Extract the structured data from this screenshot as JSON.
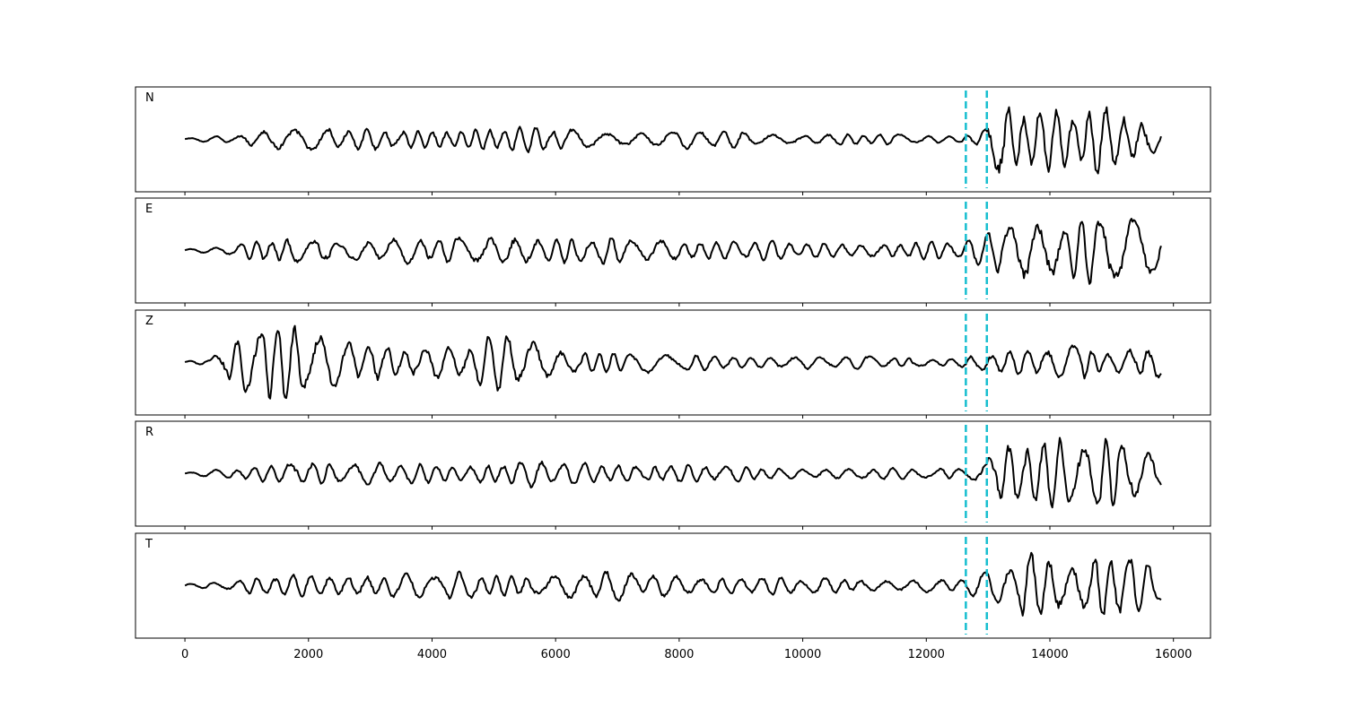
{
  "chart_data": {
    "type": "line",
    "xlim": [
      -800,
      16600
    ],
    "x_ticks": [
      0,
      2000,
      4000,
      6000,
      8000,
      10000,
      12000,
      14000,
      16000
    ],
    "x_tick_labels": [
      "0",
      "2000",
      "4000",
      "6000",
      "8000",
      "10000",
      "12000",
      "14000",
      "16000"
    ],
    "sample_range": [
      0,
      15800
    ],
    "trace_color": "#000000",
    "marker_color": "#17becf",
    "markers": [
      12640,
      12980
    ],
    "ylim": [
      -1.2,
      1.2
    ],
    "grid": false,
    "series": [
      {
        "name": "N",
        "envelope": [
          [
            0,
            0.03
          ],
          [
            800,
            0.1
          ],
          [
            1500,
            0.35
          ],
          [
            2500,
            0.25
          ],
          [
            3500,
            0.22
          ],
          [
            4500,
            0.28
          ],
          [
            5500,
            0.3
          ],
          [
            6500,
            0.22
          ],
          [
            7500,
            0.2
          ],
          [
            8500,
            0.22
          ],
          [
            9500,
            0.14
          ],
          [
            10500,
            0.14
          ],
          [
            11500,
            0.12
          ],
          [
            12500,
            0.08
          ],
          [
            12900,
            0.25
          ],
          [
            13150,
            1.0
          ],
          [
            13600,
            0.8
          ],
          [
            14200,
            0.65
          ],
          [
            14800,
            0.8
          ],
          [
            15200,
            0.7
          ],
          [
            15800,
            0.45
          ]
        ]
      },
      {
        "name": "E",
        "envelope": [
          [
            0,
            0.03
          ],
          [
            800,
            0.12
          ],
          [
            1500,
            0.3
          ],
          [
            2500,
            0.3
          ],
          [
            3500,
            0.3
          ],
          [
            4500,
            0.3
          ],
          [
            5200,
            0.45
          ],
          [
            6000,
            0.3
          ],
          [
            7000,
            0.3
          ],
          [
            8000,
            0.28
          ],
          [
            9000,
            0.25
          ],
          [
            10000,
            0.18
          ],
          [
            11000,
            0.2
          ],
          [
            12000,
            0.2
          ],
          [
            12500,
            0.2
          ],
          [
            12900,
            0.35
          ],
          [
            13300,
            0.8
          ],
          [
            13800,
            0.85
          ],
          [
            14300,
            0.8
          ],
          [
            14700,
            0.8
          ],
          [
            15100,
            0.9
          ],
          [
            15500,
            0.7
          ],
          [
            15800,
            0.5
          ]
        ]
      },
      {
        "name": "Z",
        "envelope": [
          [
            0,
            0.03
          ],
          [
            400,
            0.1
          ],
          [
            700,
            0.6
          ],
          [
            1000,
            1.0
          ],
          [
            1700,
            0.9
          ],
          [
            2500,
            0.55
          ],
          [
            3500,
            0.45
          ],
          [
            4500,
            0.4
          ],
          [
            5200,
            0.75
          ],
          [
            6000,
            0.35
          ],
          [
            7000,
            0.28
          ],
          [
            8000,
            0.18
          ],
          [
            9000,
            0.18
          ],
          [
            10000,
            0.15
          ],
          [
            11000,
            0.15
          ],
          [
            12000,
            0.12
          ],
          [
            12600,
            0.12
          ],
          [
            13000,
            0.25
          ],
          [
            13800,
            0.3
          ],
          [
            14500,
            0.55
          ],
          [
            15000,
            0.3
          ],
          [
            15800,
            0.5
          ]
        ]
      },
      {
        "name": "R",
        "envelope": [
          [
            0,
            0.03
          ],
          [
            800,
            0.12
          ],
          [
            1700,
            0.35
          ],
          [
            2500,
            0.25
          ],
          [
            3500,
            0.25
          ],
          [
            4500,
            0.25
          ],
          [
            5500,
            0.3
          ],
          [
            6500,
            0.25
          ],
          [
            7500,
            0.25
          ],
          [
            8500,
            0.2
          ],
          [
            9500,
            0.15
          ],
          [
            10500,
            0.15
          ],
          [
            11500,
            0.13
          ],
          [
            12500,
            0.12
          ],
          [
            12900,
            0.3
          ],
          [
            13200,
            0.95
          ],
          [
            13700,
            0.85
          ],
          [
            14300,
            0.8
          ],
          [
            14800,
            0.75
          ],
          [
            15200,
            0.85
          ],
          [
            15800,
            0.5
          ]
        ]
      },
      {
        "name": "T",
        "envelope": [
          [
            0,
            0.05
          ],
          [
            800,
            0.12
          ],
          [
            1500,
            0.25
          ],
          [
            2500,
            0.3
          ],
          [
            3500,
            0.3
          ],
          [
            4500,
            0.3
          ],
          [
            5500,
            0.3
          ],
          [
            6500,
            0.35
          ],
          [
            7500,
            0.3
          ],
          [
            8500,
            0.25
          ],
          [
            9500,
            0.2
          ],
          [
            10500,
            0.18
          ],
          [
            11500,
            0.17
          ],
          [
            12500,
            0.15
          ],
          [
            12900,
            0.3
          ],
          [
            13400,
            0.6
          ],
          [
            13600,
            1.0
          ],
          [
            14000,
            0.9
          ],
          [
            14500,
            0.6
          ],
          [
            15000,
            0.95
          ],
          [
            15500,
            0.55
          ],
          [
            15800,
            0.4
          ]
        ]
      }
    ]
  }
}
